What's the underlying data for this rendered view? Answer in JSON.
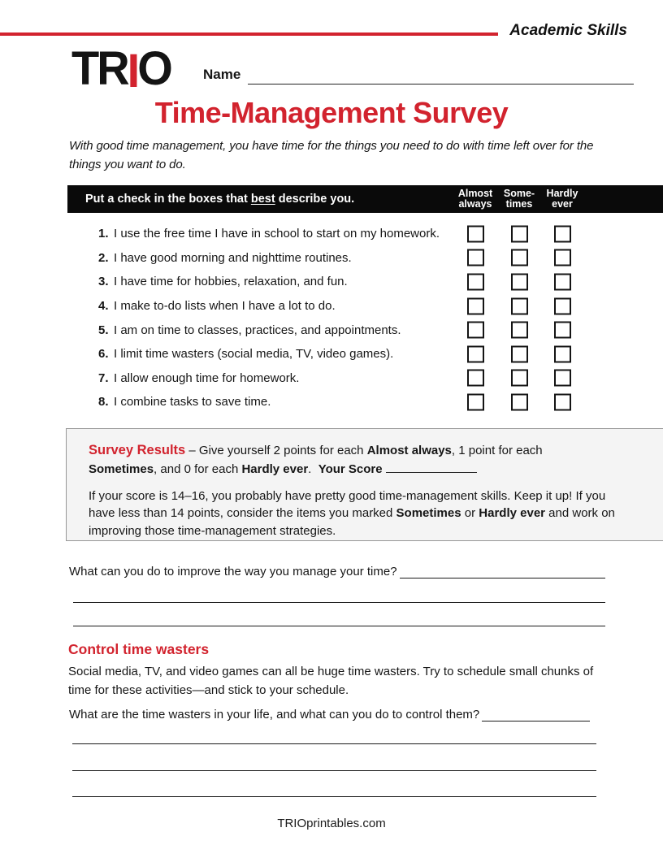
{
  "colors": {
    "accent_red": "#d2232e",
    "bar_black": "#0a0a0a",
    "results_box_bg": "#f4f4f4"
  },
  "header": {
    "tagline": "Academic Skills",
    "logo_tr": "TR",
    "logo_i": "I",
    "logo_o": "O",
    "name_label": "Name",
    "title": "Time-Management Survey",
    "intro": "With good time management, you have time for the things you need to do with time left over for the things you want to do."
  },
  "survey": {
    "instruction_prefix": "Put a check in the boxes that ",
    "instruction_emphasis": "best",
    "instruction_suffix": " describe you.",
    "columns": [
      {
        "line1": "Almost",
        "line2": "always"
      },
      {
        "line1": "Some-",
        "line2": "times"
      },
      {
        "line1": "Hardly",
        "line2": "ever"
      }
    ],
    "items": [
      {
        "num": "1.",
        "text": "I use the free time I have in school to start on my homework."
      },
      {
        "num": "2.",
        "text": "I have good morning and nighttime routines."
      },
      {
        "num": "3.",
        "text": "I have time for hobbies, relaxation, and fun."
      },
      {
        "num": "4.",
        "text": "I make to-do lists when I have a lot to do."
      },
      {
        "num": "5.",
        "text": "I am on time to classes, practices, and appointments."
      },
      {
        "num": "6.",
        "text": "I limit time wasters (social media, TV, video games)."
      },
      {
        "num": "7.",
        "text": "I allow enough time for homework."
      },
      {
        "num": "8.",
        "text": "I combine tasks to save time."
      }
    ]
  },
  "results": {
    "heading": "Survey Results",
    "p1_1": " – Give yourself 2 points for each ",
    "p1_2": "Almost always",
    "p1_3": ", 1 point for each ",
    "p1_4": "Sometimes",
    "p1_5": ", and 0 for each ",
    "p1_6": "Hardly ever",
    "p1_7": ".  ",
    "score_label": "Your Score ",
    "p2_1": "If your score is 14–16, you probably have pretty good time-management skills. Keep it up! If you have less than 14 points, consider the items you marked ",
    "p2_2": "Sometimes",
    "p2_3": " or ",
    "p2_4": "Hardly ever",
    "p2_5": " and work on improving those time-management strategies."
  },
  "improve": {
    "question": "What can you do to improve the way you manage your time?"
  },
  "wasters": {
    "heading": "Control time wasters",
    "text": "Social media, TV, and video games can all be huge time wasters. Try to schedule small chunks of time for these activities—and stick to your schedule.",
    "question": "What are the time wasters in your life, and what can you do to control them? "
  },
  "footer": {
    "site": "TRIOprintables.com"
  }
}
